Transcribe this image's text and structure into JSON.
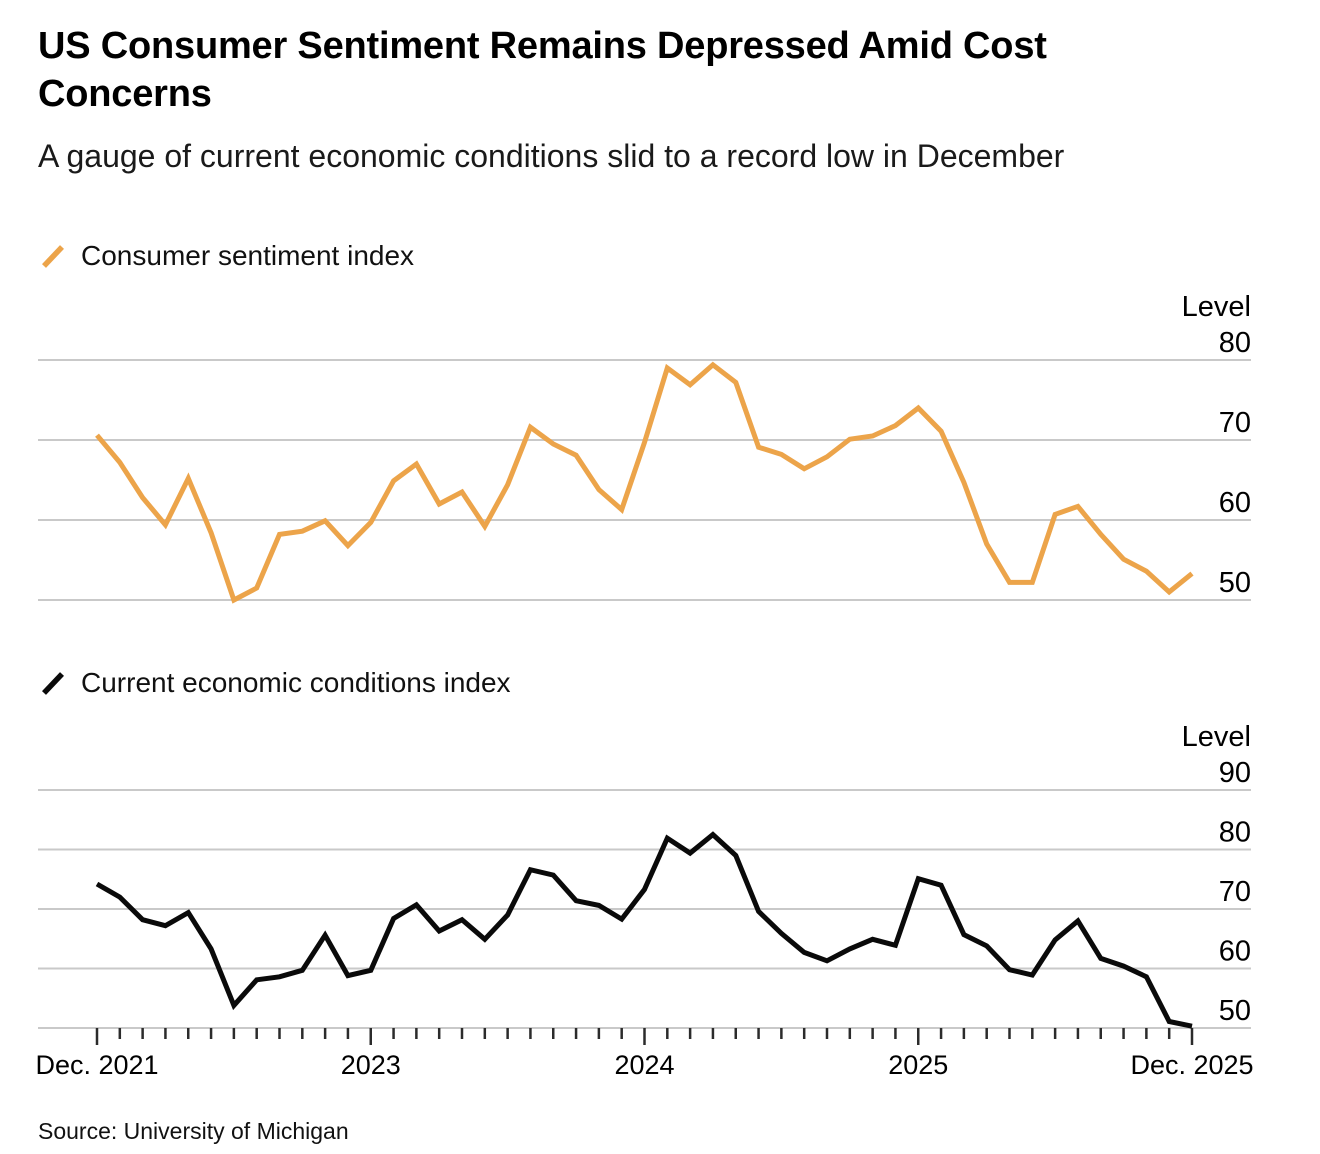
{
  "header": {
    "title": "US Consumer Sentiment Remains Depressed Amid Cost Concerns",
    "subtitle": "A gauge of current economic conditions slid to a record low in December"
  },
  "source": "Source: University of Michigan",
  "chart_data": [
    {
      "type": "line",
      "legend": "Consumer sentiment index",
      "color": "#ECA44A",
      "unit_label": "Level",
      "yticks": [
        80,
        70,
        60,
        50
      ],
      "ylim": [
        46,
        90
      ],
      "grid": true,
      "x_range": "Dec. 2021 to Dec. 2025, monthly",
      "xticks": [
        {
          "pos": 0,
          "label": "Dec. 2021"
        },
        {
          "pos": 12,
          "label": "2023"
        },
        {
          "pos": 24,
          "label": "2024"
        },
        {
          "pos": 36,
          "label": "2025"
        },
        {
          "pos": 48,
          "label": "Dec. 2025"
        }
      ],
      "values": [
        70.6,
        67.2,
        62.8,
        59.4,
        65.2,
        58.4,
        50.0,
        51.5,
        58.2,
        58.6,
        59.9,
        56.8,
        59.7,
        64.9,
        67.0,
        62.0,
        63.5,
        59.2,
        64.4,
        71.6,
        69.5,
        68.1,
        63.8,
        61.3,
        69.7,
        79.0,
        76.9,
        79.4,
        77.2,
        69.1,
        68.2,
        66.4,
        67.9,
        70.1,
        70.5,
        71.8,
        74.0,
        71.1,
        64.7,
        57.0,
        52.2,
        52.2,
        60.7,
        61.7,
        58.2,
        55.1,
        53.6,
        51.0,
        53.3
      ]
    },
    {
      "type": "line",
      "legend": "Current economic conditions index",
      "color": "#0a0a0a",
      "unit_label": "Level",
      "yticks": [
        90,
        80,
        70,
        60,
        50
      ],
      "ylim": [
        46,
        95
      ],
      "grid": true,
      "x_range": "Dec. 2021 to Dec. 2025, monthly",
      "xticks": [
        {
          "pos": 0,
          "label": "Dec. 2021"
        },
        {
          "pos": 12,
          "label": "2023"
        },
        {
          "pos": 24,
          "label": "2024"
        },
        {
          "pos": 36,
          "label": "2025"
        },
        {
          "pos": 48,
          "label": "Dec. 2025"
        }
      ],
      "values": [
        74.2,
        72.0,
        68.2,
        67.2,
        69.4,
        63.3,
        53.8,
        58.1,
        58.6,
        59.7,
        65.6,
        58.8,
        59.7,
        68.4,
        70.7,
        66.3,
        68.2,
        64.9,
        69.0,
        76.6,
        75.7,
        71.4,
        70.6,
        68.3,
        73.3,
        81.9,
        79.4,
        82.5,
        79.0,
        69.6,
        65.9,
        62.7,
        61.3,
        63.3,
        64.9,
        63.9,
        75.1,
        74.0,
        65.7,
        63.8,
        59.8,
        58.9,
        64.8,
        68.0,
        61.7,
        60.4,
        58.6,
        51.1,
        50.3
      ]
    }
  ]
}
